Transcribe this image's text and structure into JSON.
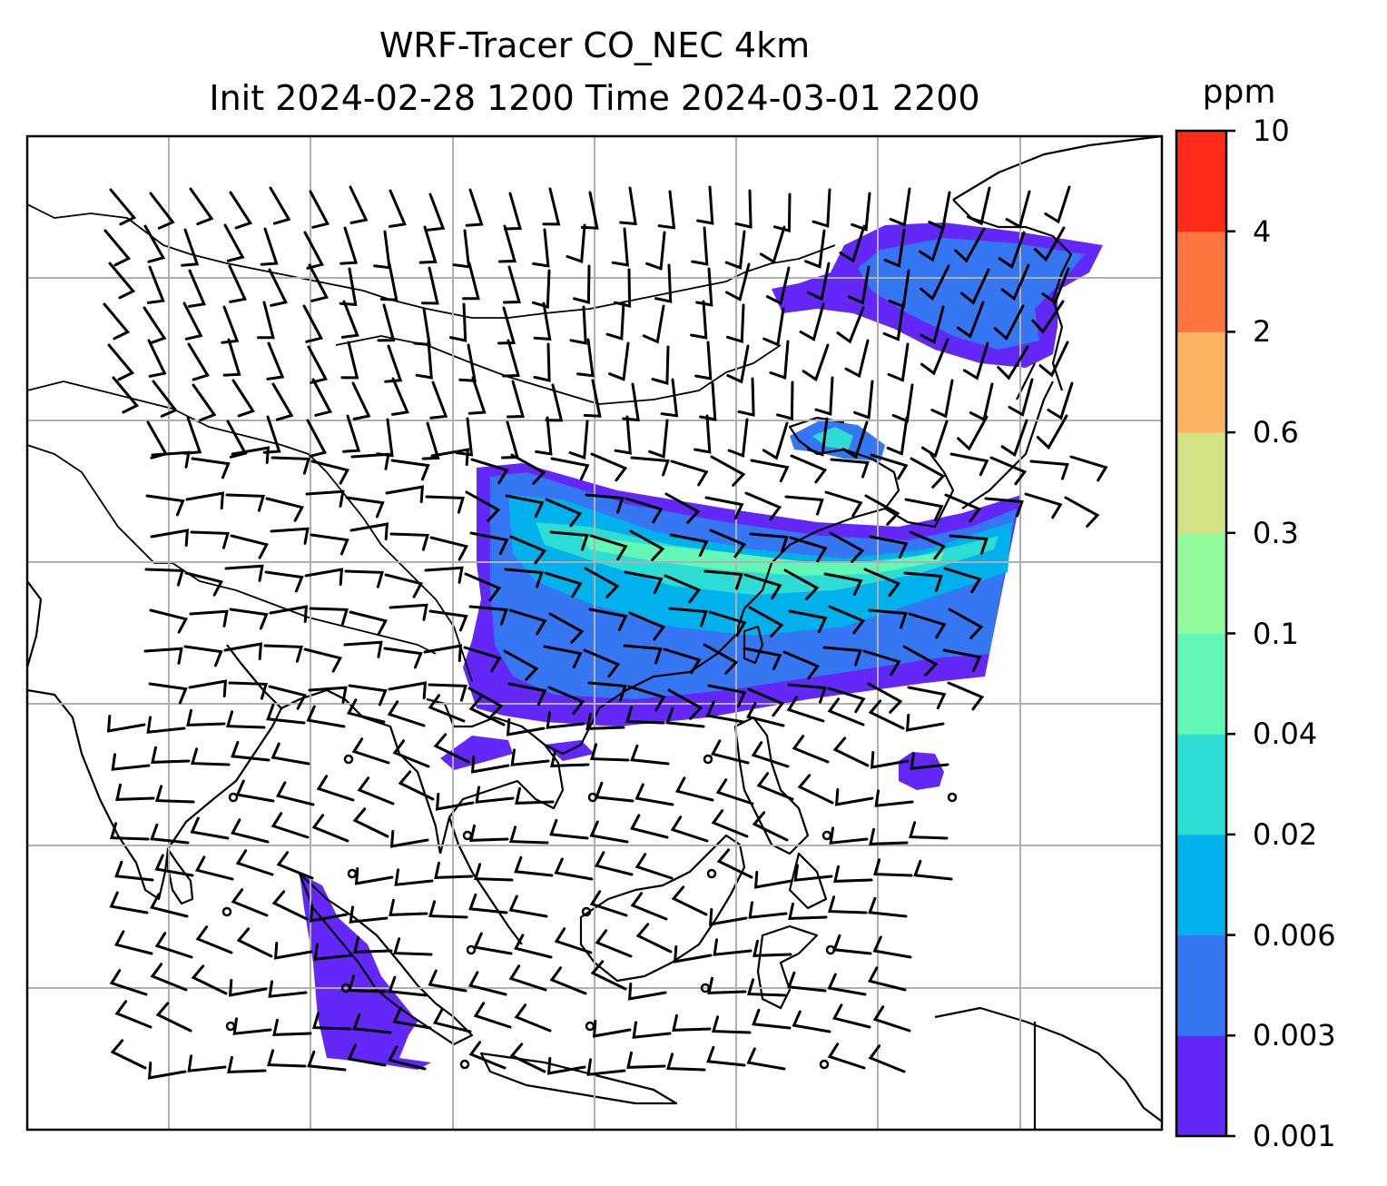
{
  "title": {
    "line1": "WRF-Tracer CO_NEC 4km",
    "line2": "Init 2024-02-28 1200 Time 2024-03-01 2200"
  },
  "colorbar": {
    "unit": "ppm",
    "levels": [
      "0.001",
      "0.003",
      "0.006",
      "0.02",
      "0.04",
      "0.1",
      "0.3",
      "0.6",
      "2",
      "4",
      "10"
    ],
    "colors": [
      "#6328f8",
      "#3576f3",
      "#00b1ec",
      "#2ddcd2",
      "#62f7b7",
      "#93fa9c",
      "#d2e284",
      "#fcb462",
      "#ff7540",
      "#ff2a17"
    ]
  },
  "map": {
    "projection": "Mercator",
    "lon_range": [
      59.7,
      140.0
    ],
    "lat_range": [
      -11.0,
      44.0
    ],
    "gridlines": "on",
    "variables": [
      "CO_NEC tracer concentration (shaded)",
      "wind barbs"
    ]
  }
}
